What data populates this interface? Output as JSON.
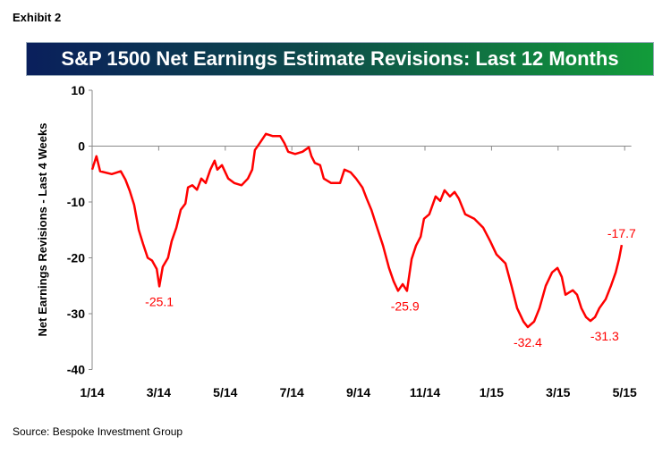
{
  "exhibit_label": "Exhibit 2",
  "source": "Source: Bespoke Investment Group",
  "colors": {
    "line": "#ff0000",
    "axis": "#888888"
  },
  "chart_data": {
    "type": "line",
    "title": "S&P 1500 Net Earnings Estimate Revisions: Last 12 Months",
    "xlabel": "",
    "ylabel": "Net Earnings Revisions - Last 4 Weeks",
    "x_unit": "months since Jan 2014",
    "xlim": [
      0,
      16.2
    ],
    "ylim": [
      -40,
      10
    ],
    "yticks": [
      10,
      0,
      -10,
      -20,
      -30,
      -40
    ],
    "xticks": [
      {
        "x": 0,
        "label": "1/14"
      },
      {
        "x": 2,
        "label": "3/14"
      },
      {
        "x": 4,
        "label": "5/14"
      },
      {
        "x": 6,
        "label": "7/14"
      },
      {
        "x": 8,
        "label": "9/14"
      },
      {
        "x": 10,
        "label": "11/14"
      },
      {
        "x": 12,
        "label": "1/15"
      },
      {
        "x": 14,
        "label": "3/15"
      },
      {
        "x": 16,
        "label": "5/15"
      }
    ],
    "grid": false,
    "series": [
      {
        "name": "Net Earnings Revisions",
        "x": [
          0,
          0.13,
          0.24,
          0.59,
          0.86,
          1.0,
          1.13,
          1.26,
          1.4,
          1.53,
          1.67,
          1.8,
          1.94,
          2.02,
          2.12,
          2.28,
          2.39,
          2.53,
          2.66,
          2.8,
          2.88,
          3.01,
          3.15,
          3.28,
          3.41,
          3.55,
          3.68,
          3.76,
          3.9,
          4.09,
          4.27,
          4.49,
          4.68,
          4.81,
          4.89,
          5.03,
          5.22,
          5.43,
          5.65,
          5.78,
          5.89,
          6.1,
          6.32,
          6.51,
          6.59,
          6.69,
          6.85,
          6.96,
          7.18,
          7.45,
          7.58,
          7.77,
          7.93,
          8.12,
          8.25,
          8.39,
          8.52,
          8.74,
          8.92,
          9.06,
          9.19,
          9.33,
          9.46,
          9.6,
          9.73,
          9.87,
          9.97,
          10.13,
          10.32,
          10.46,
          10.59,
          10.75,
          10.89,
          11.02,
          11.21,
          11.48,
          11.75,
          11.96,
          12.15,
          12.42,
          12.6,
          12.77,
          12.96,
          13.09,
          13.28,
          13.44,
          13.63,
          13.82,
          13.98,
          14.11,
          14.22,
          14.44,
          14.57,
          14.7,
          14.84,
          14.97,
          15.11,
          15.24,
          15.43,
          15.59,
          15.73,
          15.83,
          15.91
        ],
        "y": [
          -4.2,
          -1.8,
          -4.5,
          -5,
          -4.5,
          -6,
          -8,
          -10.5,
          -15,
          -17.5,
          -20,
          -20.5,
          -22,
          -25.1,
          -21.6,
          -20,
          -17,
          -14.6,
          -11.4,
          -10.3,
          -7.4,
          -7,
          -7.8,
          -5.8,
          -6.6,
          -4.2,
          -2.6,
          -4.2,
          -3.4,
          -5.8,
          -6.6,
          -7,
          -5.8,
          -4.2,
          -0.7,
          0.5,
          2.2,
          1.8,
          1.8,
          0.5,
          -1,
          -1.4,
          -1,
          -0.2,
          -1.8,
          -3,
          -3.4,
          -5.8,
          -6.6,
          -6.6,
          -4.2,
          -4.7,
          -5.8,
          -7.4,
          -9.4,
          -11.4,
          -13.8,
          -17.8,
          -21.8,
          -24.2,
          -25.9,
          -24.7,
          -25.9,
          -20.2,
          -17.8,
          -16.2,
          -13,
          -12.2,
          -9,
          -9.8,
          -7.9,
          -9,
          -8.2,
          -9.4,
          -12.2,
          -13,
          -14.6,
          -17,
          -19.4,
          -21,
          -25,
          -29,
          -31.4,
          -32.4,
          -31.4,
          -29,
          -25,
          -22.6,
          -21.8,
          -23.4,
          -26.6,
          -25.8,
          -26.6,
          -29,
          -30.6,
          -31.3,
          -30.6,
          -29,
          -27.4,
          -25,
          -22.6,
          -20.2,
          -17.7
        ]
      }
    ],
    "annotations": [
      {
        "x": 2.02,
        "y": -25.1,
        "text": "-25.1",
        "pos": "below"
      },
      {
        "x": 9.4,
        "y": -25.9,
        "text": "-25.9",
        "pos": "below"
      },
      {
        "x": 13.09,
        "y": -32.4,
        "text": "-32.4",
        "pos": "below"
      },
      {
        "x": 15.4,
        "y": -31.3,
        "text": "-31.3",
        "pos": "below"
      },
      {
        "x": 15.91,
        "y": -17.7,
        "text": "-17.7",
        "pos": "above"
      }
    ]
  }
}
